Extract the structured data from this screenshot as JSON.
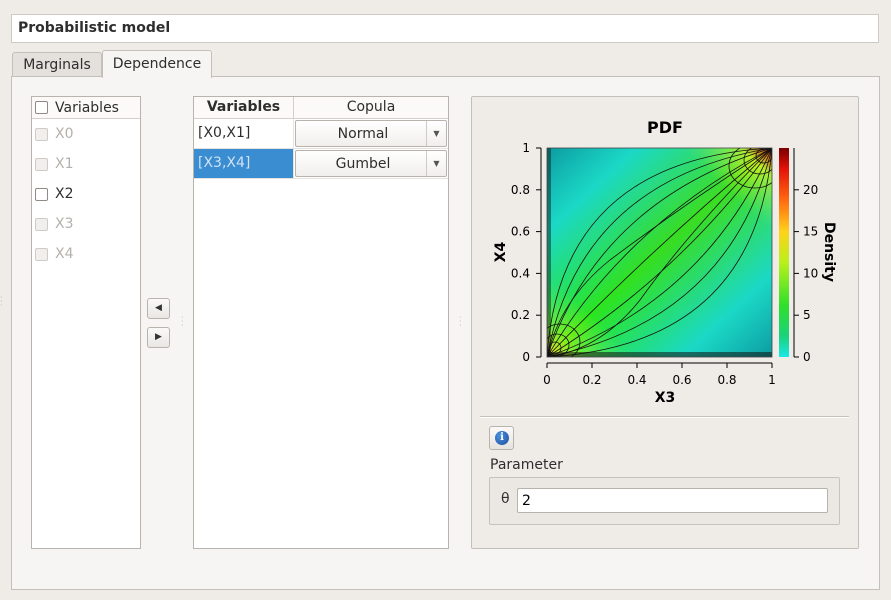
{
  "header": {
    "title": "Probabilistic model"
  },
  "tabs": [
    {
      "label": "Marginals",
      "active": false
    },
    {
      "label": "Dependence",
      "active": true
    }
  ],
  "variables_list": {
    "header": "Variables",
    "items": [
      {
        "label": "X0",
        "enabled": false,
        "checked": false
      },
      {
        "label": "X1",
        "enabled": false,
        "checked": false
      },
      {
        "label": "X2",
        "enabled": true,
        "checked": false
      },
      {
        "label": "X3",
        "enabled": false,
        "checked": false
      },
      {
        "label": "X4",
        "enabled": false,
        "checked": false
      }
    ]
  },
  "move_buttons": {
    "left": "◀",
    "right": "▶"
  },
  "copula_table": {
    "headers": [
      "Variables",
      "Copula"
    ],
    "rows": [
      {
        "variables": "[X0,X1]",
        "copula": "Normal",
        "selected": false
      },
      {
        "variables": "[X3,X4]",
        "copula": "Gumbel",
        "selected": true
      }
    ]
  },
  "plot": {
    "title": "PDF",
    "xlabel": "X3",
    "ylabel": "X4",
    "colorbar_label": "Density"
  },
  "chart_data": {
    "type": "heatmap",
    "title": "PDF",
    "xlabel": "X3",
    "ylabel": "X4",
    "xlim": [
      0,
      1
    ],
    "ylim": [
      0,
      1
    ],
    "x_ticks": [
      "0",
      "0.2",
      "0.4",
      "0.6",
      "0.8",
      "1"
    ],
    "y_ticks": [
      "0",
      "0.2",
      "0.4",
      "0.6",
      "0.8",
      "1"
    ],
    "colorbar": {
      "label": "Density",
      "range": [
        0,
        25
      ],
      "ticks": [
        "0",
        "5",
        "10",
        "15",
        "20"
      ]
    },
    "copula": "Gumbel",
    "theta": 2,
    "contours": true
  },
  "parameter": {
    "label": "Parameter",
    "theta_symbol": "θ",
    "theta_value": "2"
  },
  "info_icon": "i"
}
